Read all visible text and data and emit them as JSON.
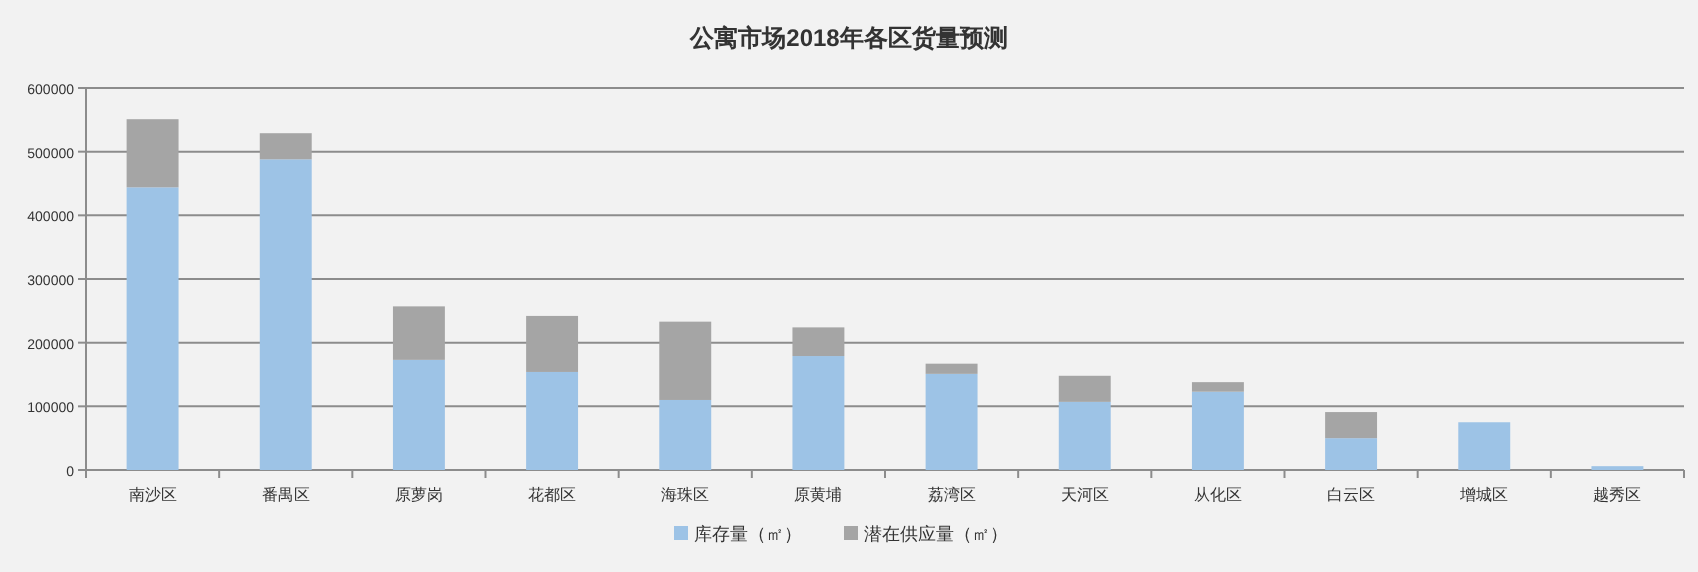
{
  "chart_data": {
    "type": "bar",
    "title": "公寓市场2018年各区货量预测",
    "stacked": true,
    "categories": [
      "南沙区",
      "番禺区",
      "原萝岗",
      "花都区",
      "海珠区",
      "原黄埔",
      "荔湾区",
      "天河区",
      "从化区",
      "白云区",
      "增城区",
      "越秀区"
    ],
    "series": [
      {
        "name": "库存量（㎡）",
        "color": "#9dc3e6",
        "values": [
          444000,
          488000,
          173000,
          154000,
          110000,
          179000,
          151000,
          107000,
          123000,
          50000,
          75000,
          6000
        ]
      },
      {
        "name": "潜在供应量（㎡）",
        "color": "#a5a5a5",
        "values": [
          107000,
          41000,
          84000,
          88000,
          123000,
          45000,
          16000,
          41000,
          15000,
          41000,
          0,
          0
        ]
      }
    ],
    "ylim": [
      0,
      600000
    ],
    "yticks": [
      0,
      100000,
      200000,
      300000,
      400000,
      500000,
      600000
    ],
    "grid": "y",
    "legend": "bottom"
  }
}
